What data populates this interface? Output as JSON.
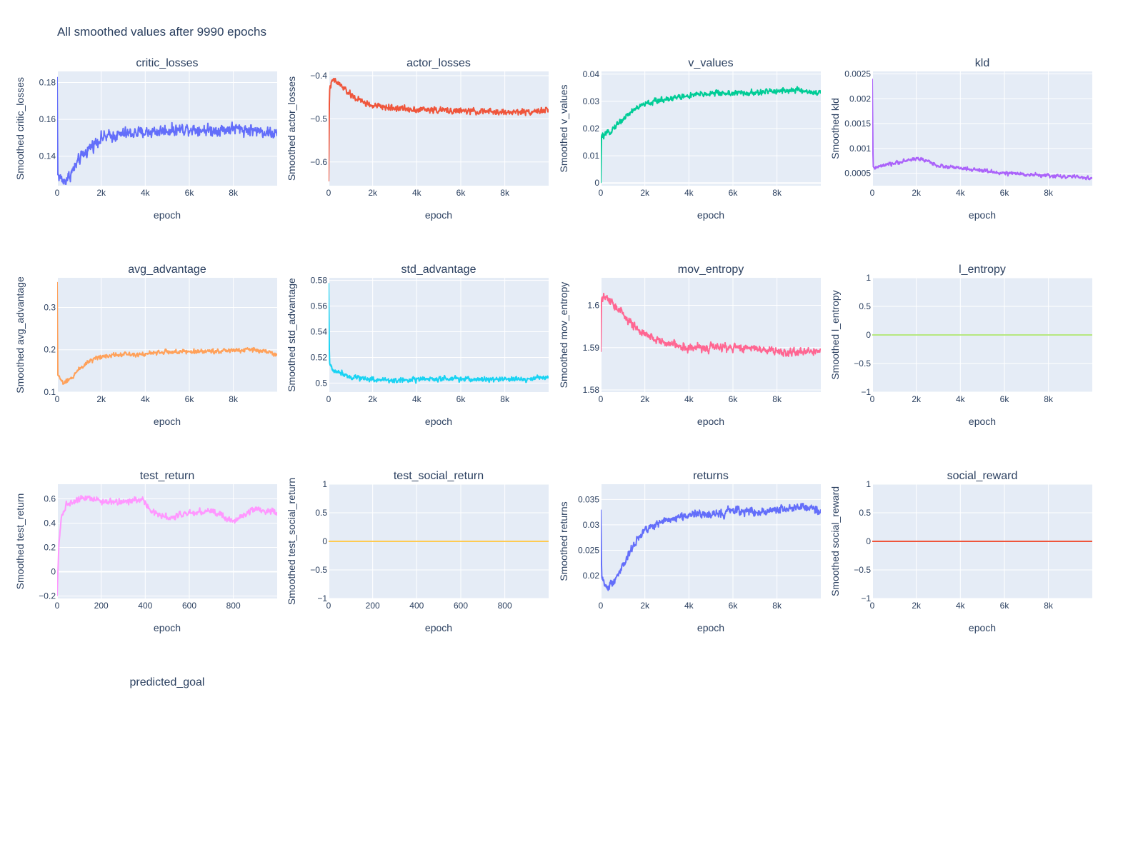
{
  "figure": {
    "title": "All smoothed values after 9990 epochs"
  },
  "chart_data": [
    {
      "type": "line",
      "title": "critic_losses",
      "xlabel": "epoch",
      "ylabel": "Smoothed critic_losses",
      "xlim": [
        0,
        9990
      ],
      "ylim": [
        0.124,
        0.186
      ],
      "xticks": [
        0,
        2000,
        4000,
        6000,
        8000
      ],
      "xtick_labels": [
        "0",
        "2k",
        "4k",
        "6k",
        "8k"
      ],
      "yticks": [
        0.14,
        0.16,
        0.18
      ],
      "ytick_labels": [
        "0.14",
        "0.16",
        "0.18"
      ],
      "color": "#636efa",
      "series": [
        {
          "profile": [
            [
              0,
              0.183
            ],
            [
              30,
              0.13
            ],
            [
              300,
              0.126
            ],
            [
              600,
              0.13
            ],
            [
              1000,
              0.138
            ],
            [
              1500,
              0.145
            ],
            [
              2000,
              0.15
            ],
            [
              3000,
              0.152
            ],
            [
              4000,
              0.153
            ],
            [
              5000,
              0.154
            ],
            [
              6000,
              0.155
            ],
            [
              7000,
              0.154
            ],
            [
              8000,
              0.155
            ],
            [
              9000,
              0.154
            ],
            [
              9990,
              0.152
            ]
          ],
          "noise": 0.0035
        }
      ]
    },
    {
      "type": "line",
      "title": "actor_losses",
      "xlabel": "epoch",
      "ylabel": "Smoothed actor_losses",
      "xlim": [
        0,
        9990
      ],
      "ylim": [
        -0.655,
        -0.39
      ],
      "xticks": [
        0,
        2000,
        4000,
        6000,
        8000
      ],
      "xtick_labels": [
        "0",
        "2k",
        "4k",
        "6k",
        "8k"
      ],
      "yticks": [
        -0.6,
        -0.5,
        -0.4
      ],
      "ytick_labels": [
        "−0.6",
        "−0.5",
        "−0.4"
      ],
      "color": "#ef553b",
      "series": [
        {
          "profile": [
            [
              0,
              -0.645
            ],
            [
              40,
              -0.43
            ],
            [
              200,
              -0.41
            ],
            [
              500,
              -0.42
            ],
            [
              1000,
              -0.445
            ],
            [
              1500,
              -0.46
            ],
            [
              2000,
              -0.47
            ],
            [
              3000,
              -0.475
            ],
            [
              4000,
              -0.478
            ],
            [
              5000,
              -0.48
            ],
            [
              6000,
              -0.482
            ],
            [
              7000,
              -0.483
            ],
            [
              8000,
              -0.485
            ],
            [
              9000,
              -0.483
            ],
            [
              9990,
              -0.48
            ]
          ],
          "noise": 0.008
        }
      ]
    },
    {
      "type": "line",
      "title": "v_values",
      "xlabel": "epoch",
      "ylabel": "Smoothed v_values",
      "xlim": [
        0,
        9990
      ],
      "ylim": [
        -0.001,
        0.041
      ],
      "xticks": [
        0,
        2000,
        4000,
        6000,
        8000
      ],
      "xtick_labels": [
        "0",
        "2k",
        "4k",
        "6k",
        "8k"
      ],
      "yticks": [
        0,
        0.01,
        0.02,
        0.03,
        0.04
      ],
      "ytick_labels": [
        "0",
        "0.01",
        "0.02",
        "0.03",
        "0.04"
      ],
      "color": "#00cc96",
      "series": [
        {
          "profile": [
            [
              0,
              0.0
            ],
            [
              30,
              0.017
            ],
            [
              300,
              0.018
            ],
            [
              800,
              0.022
            ],
            [
              1500,
              0.027
            ],
            [
              2000,
              0.029
            ],
            [
              3000,
              0.031
            ],
            [
              4000,
              0.032
            ],
            [
              5000,
              0.033
            ],
            [
              6000,
              0.033
            ],
            [
              7000,
              0.033
            ],
            [
              8000,
              0.034
            ],
            [
              9000,
              0.034
            ],
            [
              9990,
              0.033
            ]
          ],
          "noise": 0.0012
        }
      ]
    },
    {
      "type": "line",
      "title": "kld",
      "xlabel": "epoch",
      "ylabel": "Smoothed kld",
      "xlim": [
        0,
        9990
      ],
      "ylim": [
        0.00025,
        0.00255
      ],
      "xticks": [
        0,
        2000,
        4000,
        6000,
        8000
      ],
      "xtick_labels": [
        "0",
        "2k",
        "4k",
        "6k",
        "8k"
      ],
      "yticks": [
        0.0005,
        0.001,
        0.0015,
        0.002,
        0.0025
      ],
      "ytick_labels": [
        "0.0005",
        "0.001",
        "0.0015",
        "0.002",
        "0.0025"
      ],
      "color": "#ab63fa",
      "series": [
        {
          "profile": [
            [
              0,
              0.0024
            ],
            [
              40,
              0.0006
            ],
            [
              500,
              0.00065
            ],
            [
              1000,
              0.0007
            ],
            [
              1500,
              0.00075
            ],
            [
              2000,
              0.0008
            ],
            [
              2500,
              0.00075
            ],
            [
              3000,
              0.00065
            ],
            [
              4000,
              0.0006
            ],
            [
              5000,
              0.00055
            ],
            [
              6000,
              0.0005
            ],
            [
              7000,
              0.00048
            ],
            [
              8000,
              0.00045
            ],
            [
              9000,
              0.00043
            ],
            [
              9990,
              0.0004
            ]
          ],
          "noise": 4e-05
        }
      ]
    },
    {
      "type": "line",
      "title": "avg_advantage",
      "xlabel": "epoch",
      "ylabel": "Smoothed avg_advantage",
      "xlim": [
        0,
        9990
      ],
      "ylim": [
        0.1,
        0.37
      ],
      "xticks": [
        0,
        2000,
        4000,
        6000,
        8000
      ],
      "xtick_labels": [
        "0",
        "2k",
        "4k",
        "6k",
        "8k"
      ],
      "yticks": [
        0.1,
        0.2,
        0.3
      ],
      "ytick_labels": [
        "0.1",
        "0.2",
        "0.3"
      ],
      "color": "#ffa15a",
      "series": [
        {
          "profile": [
            [
              0,
              0.36
            ],
            [
              30,
              0.14
            ],
            [
              300,
              0.12
            ],
            [
              600,
              0.13
            ],
            [
              1000,
              0.155
            ],
            [
              1500,
              0.175
            ],
            [
              2000,
              0.185
            ],
            [
              3000,
              0.19
            ],
            [
              4000,
              0.19
            ],
            [
              5000,
              0.195
            ],
            [
              6000,
              0.195
            ],
            [
              7000,
              0.197
            ],
            [
              8000,
              0.198
            ],
            [
              9000,
              0.2
            ],
            [
              9990,
              0.19
            ]
          ],
          "noise": 0.006
        }
      ]
    },
    {
      "type": "line",
      "title": "std_advantage",
      "xlabel": "epoch",
      "ylabel": "Smoothed std_advantage",
      "xlim": [
        0,
        9990
      ],
      "ylim": [
        0.493,
        0.582
      ],
      "xticks": [
        0,
        2000,
        4000,
        6000,
        8000
      ],
      "xtick_labels": [
        "0",
        "2k",
        "4k",
        "6k",
        "8k"
      ],
      "yticks": [
        0.5,
        0.52,
        0.54,
        0.56,
        0.58
      ],
      "ytick_labels": [
        "0.5",
        "0.52",
        "0.54",
        "0.56",
        "0.58"
      ],
      "color": "#19d3f3",
      "series": [
        {
          "profile": [
            [
              0,
              0.578
            ],
            [
              40,
              0.515
            ],
            [
              200,
              0.51
            ],
            [
              600,
              0.508
            ],
            [
              1000,
              0.505
            ],
            [
              2000,
              0.503
            ],
            [
              3000,
              0.502
            ],
            [
              4000,
              0.503
            ],
            [
              5000,
              0.503
            ],
            [
              6000,
              0.503
            ],
            [
              7000,
              0.503
            ],
            [
              8000,
              0.503
            ],
            [
              9000,
              0.503
            ],
            [
              9990,
              0.505
            ]
          ],
          "noise": 0.0022
        }
      ]
    },
    {
      "type": "line",
      "title": "mov_entropy",
      "xlabel": "epoch",
      "ylabel": "Smoothed mov_entropy",
      "xlim": [
        0,
        9990
      ],
      "ylim": [
        1.5795,
        1.6065
      ],
      "xticks": [
        0,
        2000,
        4000,
        6000,
        8000
      ],
      "xtick_labels": [
        "0",
        "2k",
        "4k",
        "6k",
        "8k"
      ],
      "yticks": [
        1.58,
        1.59,
        1.6
      ],
      "ytick_labels": [
        "1.58",
        "1.59",
        "1.6"
      ],
      "color": "#ff6692",
      "series": [
        {
          "profile": [
            [
              0,
              1.589
            ],
            [
              30,
              1.601
            ],
            [
              200,
              1.602
            ],
            [
              600,
              1.6
            ],
            [
              1000,
              1.598
            ],
            [
              1500,
              1.595
            ],
            [
              2000,
              1.593
            ],
            [
              3000,
              1.591
            ],
            [
              4000,
              1.59
            ],
            [
              5000,
              1.59
            ],
            [
              6000,
              1.59
            ],
            [
              7000,
              1.59
            ],
            [
              8000,
              1.589
            ],
            [
              9000,
              1.589
            ],
            [
              9990,
              1.589
            ]
          ],
          "noise": 0.0011
        }
      ]
    },
    {
      "type": "line",
      "title": "l_entropy",
      "xlabel": "epoch",
      "ylabel": "Smoothed l_entropy",
      "xlim": [
        0,
        9990
      ],
      "ylim": [
        -1,
        1
      ],
      "xticks": [
        0,
        2000,
        4000,
        6000,
        8000
      ],
      "xtick_labels": [
        "0",
        "2k",
        "4k",
        "6k",
        "8k"
      ],
      "yticks": [
        -1,
        -0.5,
        0,
        0.5,
        1
      ],
      "ytick_labels": [
        "−1",
        "−0.5",
        "0",
        "0.5",
        "1"
      ],
      "color": "#b6e880",
      "series": [
        {
          "profile": [
            [
              0,
              0
            ],
            [
              9990,
              0
            ]
          ],
          "noise": 0
        }
      ]
    },
    {
      "type": "line",
      "title": "test_return",
      "xlabel": "epoch",
      "ylabel": "Smoothed test_return",
      "xlim": [
        0,
        999
      ],
      "ylim": [
        -0.22,
        0.72
      ],
      "xticks": [
        0,
        200,
        400,
        600,
        800
      ],
      "xtick_labels": [
        "0",
        "200",
        "400",
        "600",
        "800"
      ],
      "yticks": [
        -0.2,
        0,
        0.2,
        0.4,
        0.6
      ],
      "ytick_labels": [
        "−0.2",
        "0",
        "0.2",
        "0.4",
        "0.6"
      ],
      "color": "#ff97ff",
      "series": [
        {
          "profile": [
            [
              0,
              -0.2
            ],
            [
              8,
              0.25
            ],
            [
              20,
              0.45
            ],
            [
              40,
              0.55
            ],
            [
              120,
              0.62
            ],
            [
              200,
              0.58
            ],
            [
              300,
              0.57
            ],
            [
              390,
              0.6
            ],
            [
              420,
              0.5
            ],
            [
              500,
              0.45
            ],
            [
              600,
              0.48
            ],
            [
              700,
              0.5
            ],
            [
              800,
              0.42
            ],
            [
              900,
              0.52
            ],
            [
              999,
              0.48
            ]
          ],
          "noise": 0.028
        }
      ]
    },
    {
      "type": "line",
      "title": "test_social_return",
      "xlabel": "epoch",
      "ylabel": "Smoothed test_social_return",
      "xlim": [
        0,
        999
      ],
      "ylim": [
        -1,
        1
      ],
      "xticks": [
        0,
        200,
        400,
        600,
        800
      ],
      "xtick_labels": [
        "0",
        "200",
        "400",
        "600",
        "800"
      ],
      "yticks": [
        -1,
        -0.5,
        0,
        0.5,
        1
      ],
      "ytick_labels": [
        "−1",
        "−0.5",
        "0",
        "0.5",
        "1"
      ],
      "color": "#fecb52",
      "series": [
        {
          "profile": [
            [
              0,
              0
            ],
            [
              999,
              0
            ]
          ],
          "noise": 0
        }
      ]
    },
    {
      "type": "line",
      "title": "returns",
      "xlabel": "epoch",
      "ylabel": "Smoothed returns",
      "xlim": [
        0,
        9990
      ],
      "ylim": [
        0.0155,
        0.038
      ],
      "xticks": [
        0,
        2000,
        4000,
        6000,
        8000
      ],
      "xtick_labels": [
        "0",
        "2k",
        "4k",
        "6k",
        "8k"
      ],
      "yticks": [
        0.02,
        0.025,
        0.03,
        0.035
      ],
      "ytick_labels": [
        "0.02",
        "0.025",
        "0.03",
        "0.035"
      ],
      "color": "#636efa",
      "series": [
        {
          "profile": [
            [
              0,
              0.033
            ],
            [
              40,
              0.02
            ],
            [
              250,
              0.0175
            ],
            [
              600,
              0.019
            ],
            [
              1000,
              0.022
            ],
            [
              1500,
              0.026
            ],
            [
              2000,
              0.029
            ],
            [
              3000,
              0.031
            ],
            [
              4000,
              0.032
            ],
            [
              5000,
              0.032
            ],
            [
              6000,
              0.033
            ],
            [
              7000,
              0.0325
            ],
            [
              8000,
              0.033
            ],
            [
              9000,
              0.0335
            ],
            [
              9990,
              0.0325
            ]
          ],
          "noise": 0.0009
        }
      ]
    },
    {
      "type": "line",
      "title": "social_reward",
      "xlabel": "epoch",
      "ylabel": "Smoothed social_reward",
      "xlim": [
        0,
        9990
      ],
      "ylim": [
        -1,
        1
      ],
      "xticks": [
        0,
        2000,
        4000,
        6000,
        8000
      ],
      "xtick_labels": [
        "0",
        "2k",
        "4k",
        "6k",
        "8k"
      ],
      "yticks": [
        -1,
        -0.5,
        0,
        0.5,
        1
      ],
      "ytick_labels": [
        "−1",
        "−0.5",
        "0",
        "0.5",
        "1"
      ],
      "color": "#ef553b",
      "series": [
        {
          "profile": [
            [
              0,
              0
            ],
            [
              9990,
              0
            ]
          ],
          "noise": 0
        }
      ]
    },
    {
      "type": "line",
      "title": "predicted_goal",
      "empty": true
    }
  ]
}
